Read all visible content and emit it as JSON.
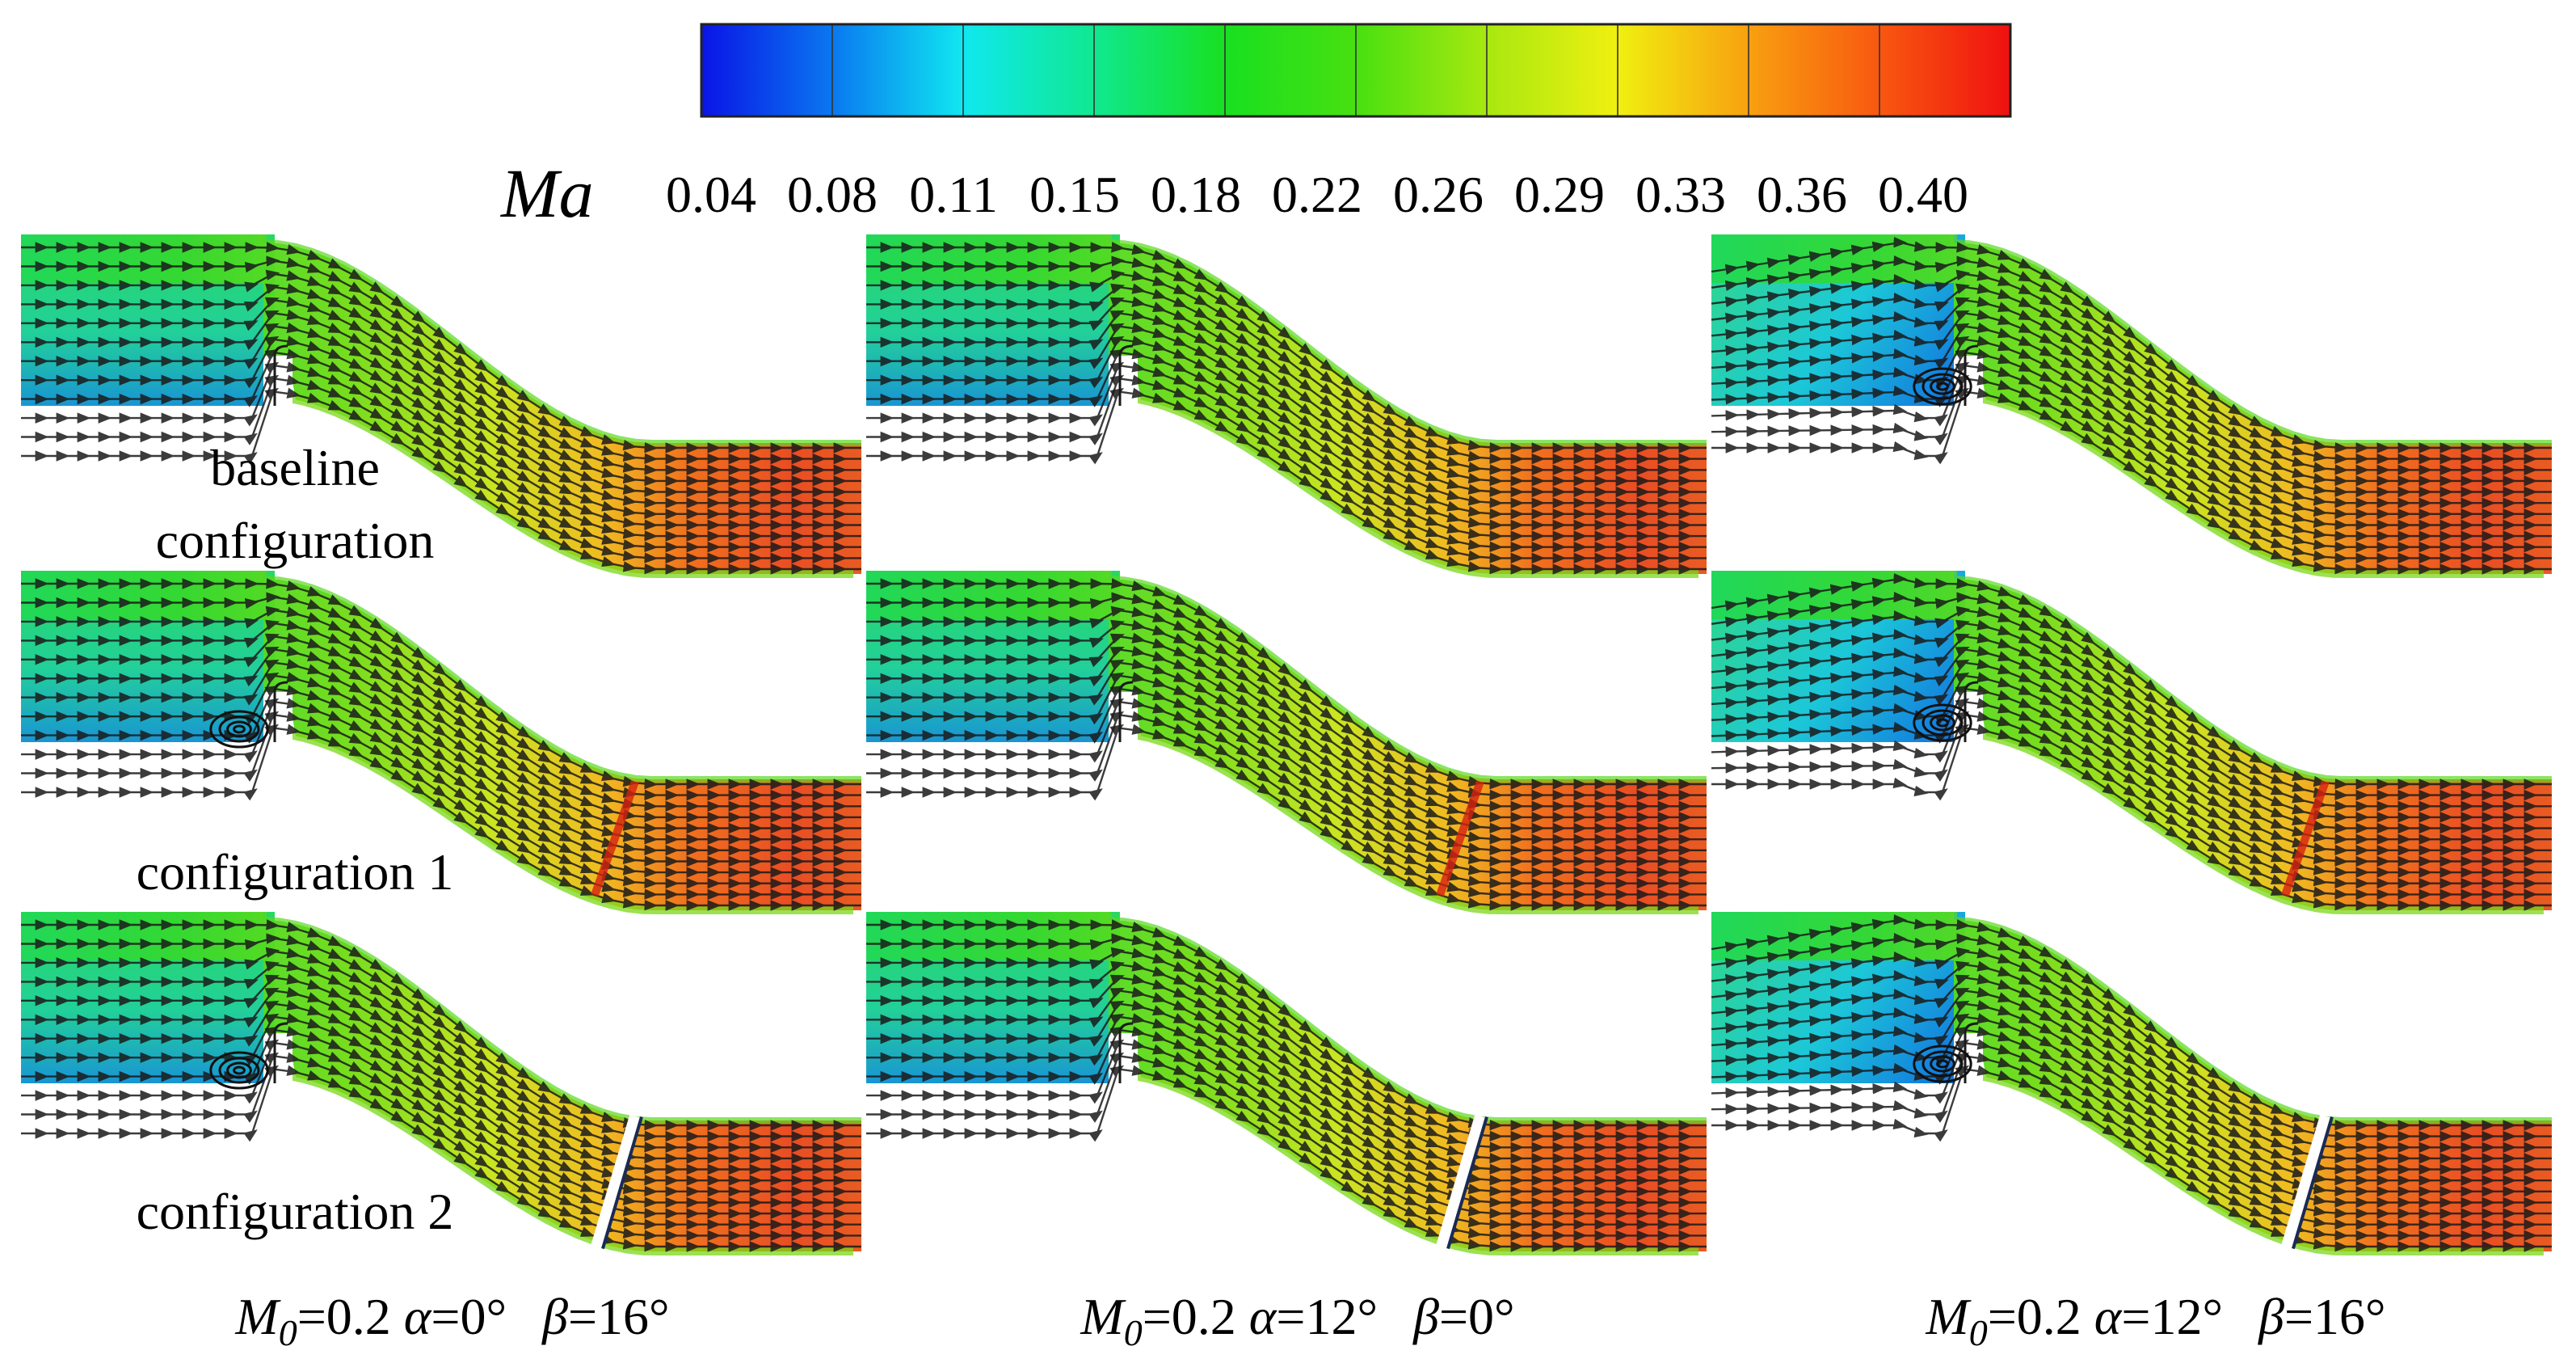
{
  "colorbar": {
    "label": "Ma",
    "ticks": [
      "0.04",
      "0.08",
      "0.11",
      "0.15",
      "0.18",
      "0.22",
      "0.26",
      "0.29",
      "0.33",
      "0.36",
      "0.40"
    ],
    "colors": [
      "#0a14e6",
      "#0a78f0",
      "#10e8f0",
      "#10e890",
      "#18e020",
      "#48e010",
      "#a8e810",
      "#f0f010",
      "#f8a010",
      "#f85810",
      "#f01010"
    ]
  },
  "row_labels": {
    "baseline_line1": "baseline",
    "baseline_line2": "configuration",
    "config1": "configuration 1",
    "config2": "configuration 2"
  },
  "conditions": [
    {
      "m_sym": "M",
      "m_sub": "0",
      "m_val": "=0.2 ",
      "a_sym": "α",
      "a_val": "=0° ",
      "b_sym": "β",
      "b_val": "=16°"
    },
    {
      "m_sym": "M",
      "m_sub": "0",
      "m_val": "=0.2 ",
      "a_sym": "α",
      "a_val": "=12° ",
      "b_sym": "β",
      "b_val": "=0°"
    },
    {
      "m_sym": "M",
      "m_sub": "0",
      "m_val": "=0.2 ",
      "a_sym": "α",
      "a_val": "=12° ",
      "b_sym": "β",
      "b_val": "=16°"
    }
  ],
  "panels": [
    {
      "row": "baseline",
      "condition": 0,
      "vortex": false,
      "gap": false
    },
    {
      "row": "baseline",
      "condition": 1,
      "vortex": false,
      "gap": false
    },
    {
      "row": "baseline",
      "condition": 2,
      "vortex": true,
      "gap": false
    },
    {
      "row": "config1",
      "condition": 0,
      "vortex": true,
      "gap": false
    },
    {
      "row": "config1",
      "condition": 1,
      "vortex": false,
      "gap": false
    },
    {
      "row": "config1",
      "condition": 2,
      "vortex": true,
      "gap": false
    },
    {
      "row": "config2",
      "condition": 0,
      "vortex": true,
      "gap": true
    },
    {
      "row": "config2",
      "condition": 1,
      "vortex": false,
      "gap": true
    },
    {
      "row": "config2",
      "condition": 2,
      "vortex": true,
      "gap": true
    }
  ]
}
